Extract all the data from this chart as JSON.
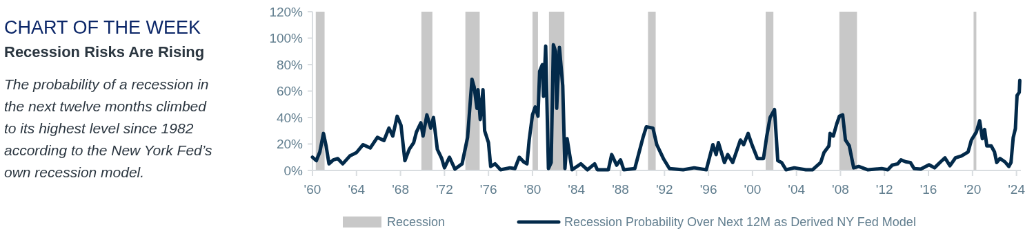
{
  "chart_data": {
    "type": "line",
    "title": "CHART OF THE WEEK",
    "subtitle": "Recession Risks Are Rising",
    "annotations": [
      "The probability of a recession in the next twelve months climbed to its highest level since 1982 according to the New York Fed’s own recession model."
    ],
    "xlim": [
      1960,
      2024.4
    ],
    "xticks": [
      {
        "value": 1960,
        "label": "'60"
      },
      {
        "value": 1964,
        "label": "'64"
      },
      {
        "value": 1968,
        "label": "'68"
      },
      {
        "value": 1972,
        "label": "'72"
      },
      {
        "value": 1976,
        "label": "'76"
      },
      {
        "value": 1980,
        "label": "'80"
      },
      {
        "value": 1984,
        "label": "'84"
      },
      {
        "value": 1988,
        "label": "'88"
      },
      {
        "value": 1992,
        "label": "'92"
      },
      {
        "value": 1996,
        "label": "'96"
      },
      {
        "value": 2000,
        "label": "'00"
      },
      {
        "value": 2004,
        "label": "'04"
      },
      {
        "value": 2008,
        "label": "'08"
      },
      {
        "value": 2012,
        "label": "'12"
      },
      {
        "value": 2016,
        "label": "'16"
      },
      {
        "value": 2020,
        "label": "'20"
      },
      {
        "value": 2024,
        "label": "'24"
      }
    ],
    "ylim": [
      0,
      120
    ],
    "yticks": [
      {
        "value": 0,
        "label": "0%"
      },
      {
        "value": 20,
        "label": "20%"
      },
      {
        "value": 40,
        "label": "40%"
      },
      {
        "value": 60,
        "label": "60%"
      },
      {
        "value": 80,
        "label": "80%"
      },
      {
        "value": 100,
        "label": "100%"
      },
      {
        "value": 120,
        "label": "120%"
      }
    ],
    "legend": "bottom",
    "bands": [
      {
        "axis": "x",
        "from": 1960.3,
        "to": 1961.1,
        "label": "Recession",
        "color": "#c8c8c8"
      },
      {
        "axis": "x",
        "from": 1969.9,
        "to": 1970.9,
        "color": "#c8c8c8"
      },
      {
        "axis": "x",
        "from": 1973.9,
        "to": 1975.2,
        "color": "#c8c8c8"
      },
      {
        "axis": "x",
        "from": 1980.0,
        "to": 1980.5,
        "color": "#c8c8c8"
      },
      {
        "axis": "x",
        "from": 1981.5,
        "to": 1982.9,
        "color": "#c8c8c8"
      },
      {
        "axis": "x",
        "from": 1990.5,
        "to": 1991.2,
        "color": "#c8c8c8"
      },
      {
        "axis": "x",
        "from": 2001.2,
        "to": 2001.9,
        "color": "#c8c8c8"
      },
      {
        "axis": "x",
        "from": 2007.9,
        "to": 2009.5,
        "color": "#c8c8c8"
      },
      {
        "axis": "x",
        "from": 2020.1,
        "to": 2020.35,
        "color": "#c8c8c8"
      }
    ],
    "series": [
      {
        "name": "Recession Probability Over Next 12M as Derived NY Fed Model",
        "color": "#032a4a",
        "x": [
          1960,
          1960.35,
          1960.67,
          1961.0,
          1961.25,
          1961.5,
          1961.9,
          1962.3,
          1962.75,
          1963.4,
          1964,
          1964.6,
          1965.25,
          1965.9,
          1966.5,
          1966.95,
          1967.3,
          1967.7,
          1968.05,
          1968.4,
          1968.8,
          1969.2,
          1969.45,
          1969.85,
          1970.05,
          1970.4,
          1970.75,
          1971.0,
          1971.35,
          1971.75,
          1972.0,
          1972.45,
          1972.95,
          1973.6,
          1974.1,
          1974.5,
          1974.7,
          1974.95,
          1975.05,
          1975.25,
          1975.5,
          1975.65,
          1976.0,
          1976.2,
          1976.6,
          1977.1,
          1977.95,
          1978.4,
          1978.8,
          1979.2,
          1979.5,
          1979.7,
          1980.0,
          1980.25,
          1980.5,
          1980.65,
          1980.9,
          1981.0,
          1981.2,
          1981.45,
          1981.7,
          1981.9,
          1982.1,
          1982.2,
          1982.45,
          1982.75,
          1982.95,
          1983.15,
          1983.6,
          1984.4,
          1985.0,
          1985.65,
          1985.9,
          1986.9,
          1987.2,
          1987.65,
          1988.0,
          1988.3,
          1989.3,
          1990.05,
          1990.35,
          1990.95,
          1991.3,
          1991.9,
          1992.45,
          1993.7,
          1994.7,
          1995.8,
          1996.4,
          1996.7,
          1996.9,
          1997.45,
          1997.75,
          1998.2,
          1998.9,
          1999.2,
          1999.6,
          1999.95,
          2000.45,
          2001.0,
          2001.3,
          2001.6,
          2002.0,
          2002.3,
          2002.65,
          2003.05,
          2003.8,
          2004.85,
          2005.45,
          2006.2,
          2006.5,
          2006.95,
          2007.05,
          2007.35,
          2007.65,
          2007.9,
          2008.2,
          2008.45,
          2008.8,
          2009.2,
          2009.65,
          2010.5,
          2011.75,
          2012.3,
          2012.7,
          2013.2,
          2013.5,
          2013.95,
          2014.35,
          2014.7,
          2015.3,
          2016.05,
          2016.55,
          2017.1,
          2017.5,
          2017.95,
          2018.45,
          2019.0,
          2019.6,
          2019.9,
          2020.35,
          2020.65,
          2020.9,
          2021.1,
          2021.3,
          2021.7,
          2022.0,
          2022.2,
          2022.5,
          2022.95,
          2023.3,
          2023.5,
          2023.7,
          2023.9,
          2024.05,
          2024.25,
          2024.3
        ],
        "values": [
          10,
          7.4,
          14,
          28,
          18,
          5,
          8,
          9,
          5,
          11,
          13.5,
          19.5,
          17,
          25,
          22.6,
          32,
          26,
          41,
          34,
          7.4,
          16,
          21,
          29,
          36,
          26,
          42,
          32,
          40,
          16,
          9,
          2,
          10,
          1,
          5,
          25,
          69,
          63,
          47,
          61,
          38.5,
          61,
          30,
          21,
          3,
          5,
          0.5,
          2,
          1.4,
          10,
          6.5,
          5,
          23,
          42,
          48,
          41,
          75,
          80,
          56,
          94,
          1.4,
          6,
          95,
          90,
          47,
          93,
          64,
          1.4,
          24,
          0.5,
          5,
          0.5,
          5,
          0.5,
          0.5,
          12,
          4,
          8,
          0.5,
          1.4,
          25,
          33,
          32,
          19.5,
          9,
          1.4,
          0.5,
          2,
          0.5,
          19.5,
          12,
          21,
          6,
          12,
          6,
          23,
          19.5,
          28,
          19.5,
          9,
          9,
          26,
          40,
          46,
          7.4,
          6,
          0.5,
          2,
          0.5,
          0.5,
          6,
          13.5,
          18.6,
          28,
          26,
          35,
          41,
          42,
          23,
          18.6,
          2,
          3,
          0.5,
          1.4,
          0.5,
          4,
          5,
          8,
          6.5,
          6,
          1.4,
          1,
          4.3,
          2,
          6.5,
          9.5,
          3.6,
          9.5,
          11,
          14,
          23,
          29,
          37.6,
          24,
          31,
          18.6,
          18.6,
          14,
          6,
          9,
          6.5,
          3,
          6,
          24.7,
          31.6,
          56.6,
          59,
          68
        ]
      }
    ]
  }
}
